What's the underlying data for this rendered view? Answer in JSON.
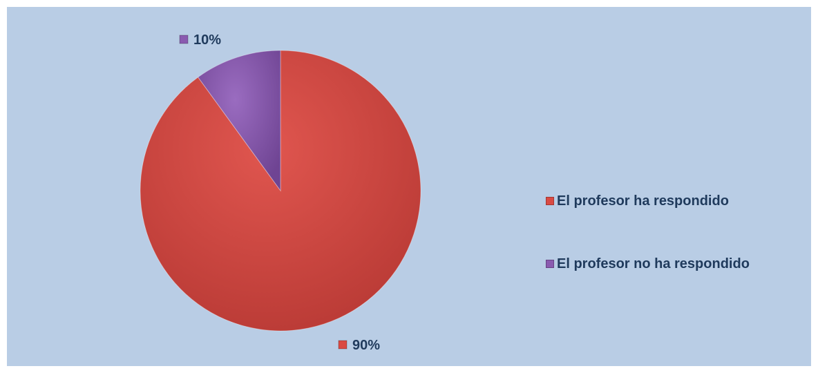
{
  "chart_data": {
    "type": "pie",
    "categories": [
      "El profesor ha respondido",
      "El profesor no ha respondido"
    ],
    "values": [
      90,
      10
    ],
    "value_labels": [
      "90%",
      "10%"
    ],
    "colors": [
      "#d94a43",
      "#8a5bb0"
    ],
    "background": "#b9cde5",
    "title": "",
    "legend_position": "right",
    "start_angle_deg": 0,
    "direction": "clockwise"
  }
}
